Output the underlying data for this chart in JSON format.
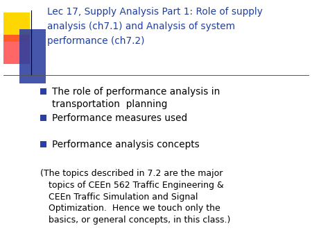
{
  "title_line1": "Lec 17, Supply Analysis Part 1: Role of supply",
  "title_line2": "analysis (ch7.1) and Analysis of system",
  "title_line3": "performance (ch7.2)",
  "title_color": "#1F3FA0",
  "title_fontsize": 9.8,
  "background_color": "#FFFFFF",
  "bullet_color": "#2B3FA0",
  "bullet_items": [
    "The role of performance analysis in\ntransportation  planning",
    "Performance measures used",
    "Performance analysis concepts"
  ],
  "note_text": "(The topics described in 7.2 are the major\n   topics of CEEn 562 Traffic Engineering &\n   CEEn Traffic Simulation and Signal\n   Optimization.  Hence we touch only the\n   basics, or general concepts, in this class.)",
  "note_fontsize": 9.0,
  "bullet_fontsize": 9.8,
  "decor_yellow_color": "#FFD700",
  "decor_red_color": "#FF3333",
  "decor_blue_color": "#2B3FA0",
  "line_color": "#555555",
  "font_family": "DejaVu Sans"
}
